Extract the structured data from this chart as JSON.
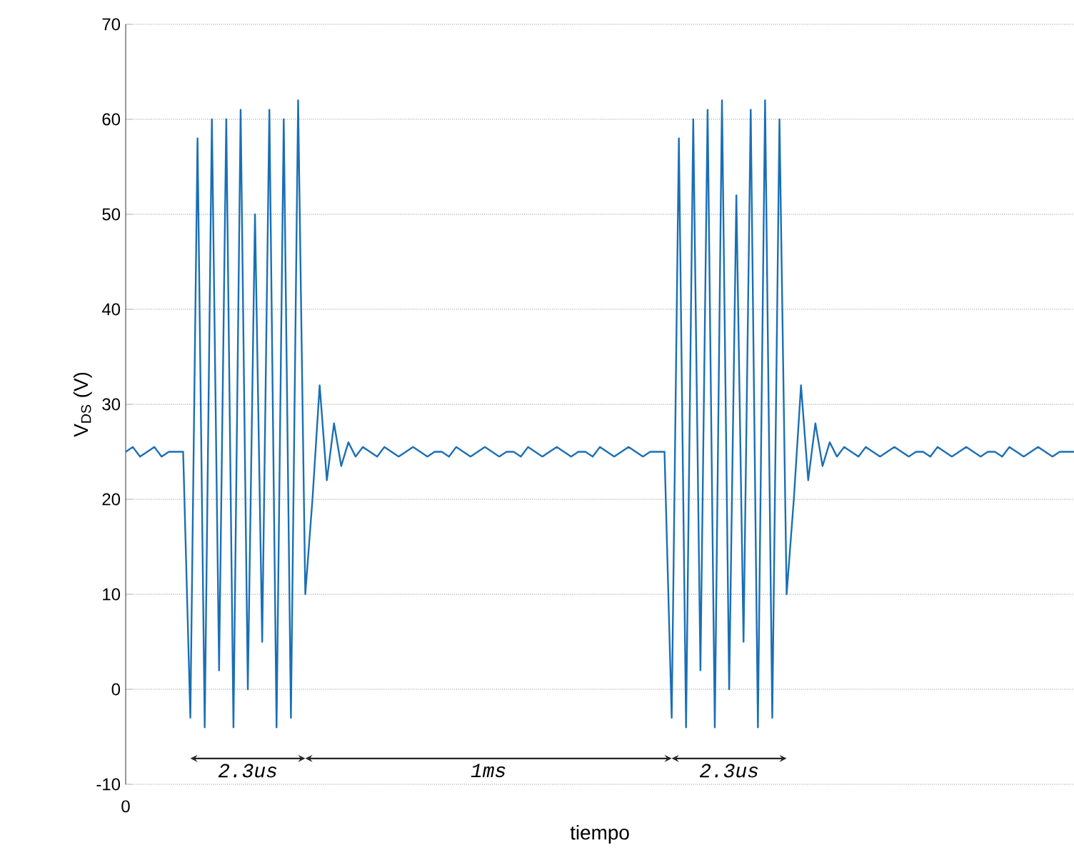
{
  "chart_data": {
    "type": "line",
    "xlabel": "tiempo",
    "ylabel": "V$_{DS}$ (V)",
    "annotations": [
      "2.3us",
      "1ms",
      "2.3us",
      "0"
    ],
    "categories": [
      null,
      null,
      null,
      null,
      null,
      null,
      null,
      null,
      null,
      null,
      null,
      null,
      null,
      null,
      null,
      null,
      null,
      null,
      null,
      null,
      null,
      null,
      null,
      null,
      null,
      null,
      null,
      null,
      null,
      null,
      null,
      null,
      null,
      null,
      null,
      null,
      null,
      null,
      null,
      null,
      null,
      null,
      null,
      null,
      null,
      null,
      null,
      null,
      null,
      null,
      null,
      null,
      null,
      null,
      null,
      null,
      null,
      null,
      null,
      null,
      null,
      null,
      null,
      null,
      null,
      null,
      null,
      null,
      null,
      null,
      null,
      null,
      null,
      null,
      null,
      null,
      null,
      null,
      null,
      null,
      null,
      null,
      null,
      null,
      null,
      null,
      null,
      null,
      null,
      null,
      null,
      null,
      null,
      null,
      null,
      null,
      null,
      null,
      null,
      null,
      null,
      null,
      null,
      null,
      null,
      null,
      null,
      null,
      null,
      null,
      null,
      null,
      null,
      null,
      null,
      null,
      null,
      null,
      null,
      null,
      null,
      null,
      null,
      null,
      null,
      null,
      null,
      null,
      null,
      null,
      null,
      null,
      null
    ],
    "ylim": [
      -10,
      70
    ],
    "yticks": [
      -10,
      0,
      10,
      20,
      30,
      40,
      50,
      60,
      70
    ],
    "grid": "y",
    "line_style": "solid",
    "marker": "none",
    "series": [
      {
        "color": "#1a6fb5",
        "values": [
          25,
          25.5,
          24.5,
          25,
          25.5,
          24.5,
          25,
          25,
          25,
          -3,
          58,
          -4,
          60,
          2,
          60,
          -4,
          61,
          0,
          50,
          5,
          61,
          -4,
          60,
          -3,
          62,
          10,
          20,
          32,
          22,
          28,
          23.5,
          26,
          24.5,
          25.5,
          25,
          24.5,
          25.5,
          25,
          24.5,
          25,
          25.5,
          25,
          24.5,
          25,
          25,
          24.5,
          25.5,
          25,
          24.5,
          25,
          25.5,
          25,
          24.5,
          25,
          25,
          24.5,
          25.5,
          25,
          24.5,
          25,
          25.5,
          25,
          24.5,
          25,
          25,
          24.5,
          25.5,
          25,
          24.5,
          25,
          25.5,
          25,
          24.5,
          25,
          25,
          25,
          -3,
          58,
          -4,
          60,
          2,
          61,
          -4,
          62,
          0,
          52,
          5,
          61,
          -4,
          62,
          -3,
          60,
          10,
          20,
          32,
          22,
          28,
          23.5,
          26,
          24.5,
          25.5,
          25,
          24.5,
          25.5,
          25,
          24.5,
          25,
          25.5,
          25,
          24.5,
          25,
          25,
          24.5,
          25.5,
          25,
          24.5,
          25,
          25.5,
          25,
          24.5,
          25,
          25,
          24.5,
          25.5,
          25,
          24.5,
          25,
          25.5,
          25,
          24.5,
          25,
          25,
          25
        ]
      }
    ]
  }
}
